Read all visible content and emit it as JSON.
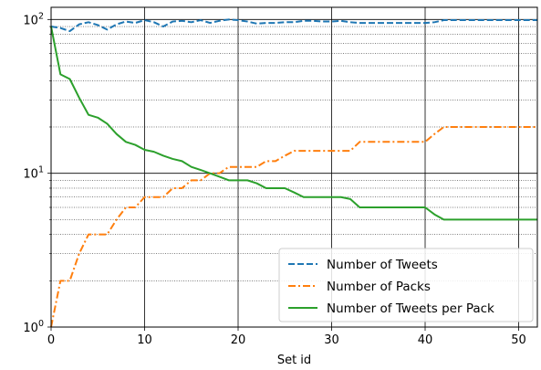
{
  "chart_data": {
    "type": "line",
    "title": "",
    "xlabel": "Set id",
    "ylabel": "",
    "yscale": "log",
    "xlim": [
      0,
      52
    ],
    "ylim": [
      1,
      120
    ],
    "grid": "major x and y solid, minor y dotted",
    "legend_position": "lower-right",
    "x_ticks": [
      0,
      10,
      20,
      30,
      40,
      50
    ],
    "x_tick_labels": [
      "0",
      "10",
      "20",
      "30",
      "40",
      "50"
    ],
    "y_ticks": [
      1,
      10,
      100
    ],
    "y_tick_labels": [
      {
        "base": "10",
        "exp": "0"
      },
      {
        "base": "10",
        "exp": "1"
      },
      {
        "base": "10",
        "exp": "2"
      }
    ],
    "series": [
      {
        "name": "Number of Tweets",
        "color": "#1f77b4",
        "style": "dashed",
        "x": [
          0,
          1,
          2,
          3,
          4,
          5,
          6,
          7,
          8,
          9,
          10,
          11,
          12,
          13,
          14,
          15,
          16,
          17,
          18,
          19,
          20,
          21,
          22,
          23,
          24,
          25,
          26,
          27,
          28,
          29,
          30,
          31,
          32,
          33,
          34,
          35,
          36,
          37,
          38,
          39,
          40,
          41,
          42,
          43,
          44,
          45,
          46,
          47,
          48,
          49,
          50,
          51,
          52
        ],
        "values": [
          90,
          88,
          84,
          93,
          96,
          92,
          86,
          93,
          97,
          95,
          99,
          96,
          90,
          97,
          98,
          96,
          99,
          95,
          98,
          100,
          99,
          97,
          94,
          95,
          95,
          96,
          96,
          98,
          98,
          97,
          97,
          98,
          96,
          95,
          95,
          95,
          95,
          95,
          95,
          95,
          95,
          96,
          99,
          99,
          99,
          99,
          99,
          99,
          99,
          99,
          99,
          99,
          99
        ]
      },
      {
        "name": "Number of Packs",
        "color": "#ff7f0e",
        "style": "dashdot",
        "x": [
          0,
          1,
          2,
          3,
          4,
          5,
          6,
          7,
          8,
          9,
          10,
          11,
          12,
          13,
          14,
          15,
          16,
          17,
          18,
          19,
          20,
          21,
          22,
          23,
          24,
          25,
          26,
          27,
          28,
          29,
          30,
          31,
          32,
          33,
          34,
          35,
          36,
          37,
          38,
          39,
          40,
          41,
          42,
          43,
          44,
          45,
          46,
          47,
          48,
          49,
          50,
          51,
          52
        ],
        "values": [
          1,
          2,
          2,
          3,
          4,
          4,
          4,
          5,
          6,
          6,
          7,
          7,
          7,
          8,
          8,
          9,
          9,
          10,
          10,
          11,
          11,
          11,
          11,
          12,
          12,
          13,
          14,
          14,
          14,
          14,
          14,
          14,
          14,
          16,
          16,
          16,
          16,
          16,
          16,
          16,
          16,
          18,
          20,
          20,
          20,
          20,
          20,
          20,
          20,
          20,
          20,
          20,
          20
        ]
      },
      {
        "name": "Number of Tweets per Pack",
        "color": "#2ca02c",
        "style": "solid",
        "x": [
          0,
          1,
          2,
          3,
          4,
          5,
          6,
          7,
          8,
          9,
          10,
          11,
          12,
          13,
          14,
          15,
          16,
          17,
          18,
          19,
          20,
          21,
          22,
          23,
          24,
          25,
          26,
          27,
          28,
          29,
          30,
          31,
          32,
          33,
          34,
          35,
          36,
          37,
          38,
          39,
          40,
          41,
          42,
          43,
          44,
          45,
          46,
          47,
          48,
          49,
          50,
          51,
          52
        ],
        "values": [
          90,
          44,
          41,
          31,
          24,
          23,
          21,
          18,
          16,
          15.3,
          14.2,
          13.8,
          13,
          12.4,
          12,
          11,
          10.5,
          10,
          9.5,
          9,
          9,
          9,
          8.6,
          8,
          8,
          8,
          7.5,
          7,
          7,
          7,
          7,
          7,
          6.8,
          6,
          6,
          6,
          6,
          6,
          6,
          6,
          6,
          5.4,
          5,
          5,
          5,
          5,
          5,
          5,
          5,
          5,
          5,
          5,
          5
        ]
      }
    ]
  }
}
